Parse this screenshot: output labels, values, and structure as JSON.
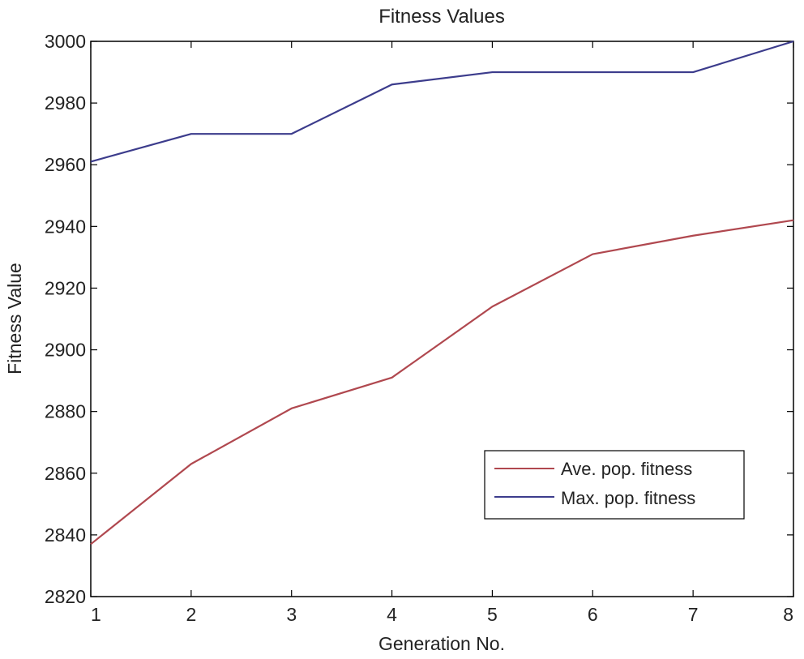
{
  "chart_data": {
    "type": "line",
    "title": "Fitness Values",
    "xlabel": "Generation No.",
    "ylabel": "Fitness Value",
    "x": [
      1,
      2,
      3,
      4,
      5,
      6,
      7,
      8
    ],
    "xlim": [
      1,
      8
    ],
    "ylim": [
      2820,
      3000
    ],
    "xticks": [
      1,
      2,
      3,
      4,
      5,
      6,
      7,
      8
    ],
    "yticks": [
      2820,
      2840,
      2860,
      2880,
      2900,
      2920,
      2940,
      2960,
      2980,
      3000
    ],
    "grid": false,
    "legend_position": "lower-right",
    "series": [
      {
        "name": "Ave. pop. fitness",
        "color": "#b0484f",
        "values": [
          2837,
          2863,
          2881,
          2891,
          2914,
          2931,
          2937,
          2942
        ]
      },
      {
        "name": "Max. pop. fitness",
        "color": "#3c3c8c",
        "values": [
          2961,
          2970,
          2970,
          2986,
          2990,
          2990,
          2990,
          3000
        ]
      }
    ]
  }
}
